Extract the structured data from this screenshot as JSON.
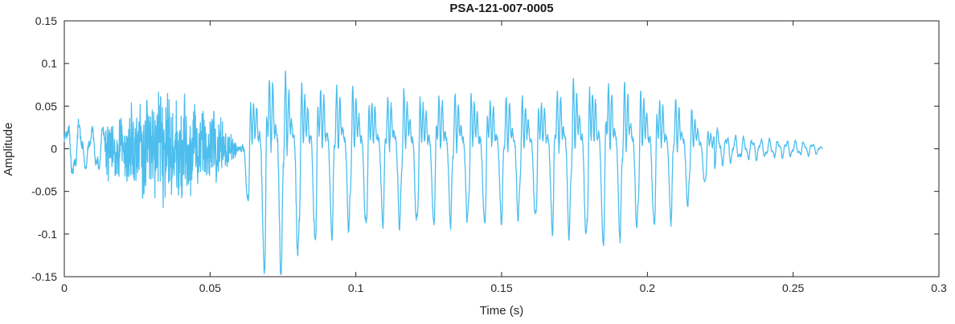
{
  "chart_data": {
    "type": "line",
    "title": "PSA-121-007-0005",
    "xlabel": "Time (s)",
    "ylabel": "Amplitude",
    "xlim": [
      0,
      0.3
    ],
    "ylim": [
      -0.15,
      0.15
    ],
    "xticks": [
      0,
      0.05,
      0.1,
      0.15,
      0.2,
      0.25,
      0.3
    ],
    "xtick_labels": [
      "0",
      "0.05",
      "0.1",
      "0.15",
      "0.2",
      "0.25",
      "0.3"
    ],
    "yticks": [
      -0.15,
      -0.1,
      -0.05,
      0,
      0.05,
      0.1,
      0.15
    ],
    "ytick_labels": [
      "-0.15",
      "-0.1",
      "-0.05",
      "0",
      "0.05",
      "0.1",
      "0.15"
    ],
    "grid": false,
    "legend_position": "none",
    "line_color": "#4DBEEE",
    "axis_color": "#262626",
    "background_color": "#ffffff",
    "waveform": {
      "description": "speech-like audio waveform: low-amplitude noisy onset 0-0.06 s, strong voiced oscillation 0.062-0.22 s peaking at +0.118 / -0.145, decaying ripple tail ending near 0.26 s",
      "signal_start_s": 0,
      "signal_end_s": 0.26,
      "peak_positive": 0.118,
      "peak_negative": -0.145,
      "sample_rate": 12000,
      "envelope": [
        [
          0,
          0.028
        ],
        [
          0.004,
          0.032
        ],
        [
          0.008,
          0.02
        ],
        [
          0.012,
          0.026
        ],
        [
          0.016,
          0.034
        ],
        [
          0.02,
          0.038
        ],
        [
          0.025,
          0.046
        ],
        [
          0.03,
          0.052
        ],
        [
          0.034,
          0.068
        ],
        [
          0.038,
          0.056
        ],
        [
          0.042,
          0.05
        ],
        [
          0.046,
          0.046
        ],
        [
          0.05,
          0.04
        ],
        [
          0.054,
          0.03
        ],
        [
          0.058,
          0.014
        ],
        [
          0.06,
          0.005
        ],
        [
          0.0615,
          0.018
        ],
        [
          0.064,
          0.09
        ],
        [
          0.068,
          0.12
        ],
        [
          0.072,
          0.135
        ],
        [
          0.076,
          0.124
        ],
        [
          0.08,
          0.11
        ],
        [
          0.085,
          0.117
        ],
        [
          0.09,
          0.113
        ],
        [
          0.095,
          0.1
        ],
        [
          0.1,
          0.105
        ],
        [
          0.105,
          0.095
        ],
        [
          0.11,
          0.09
        ],
        [
          0.115,
          0.097
        ],
        [
          0.12,
          0.1
        ],
        [
          0.125,
          0.092
        ],
        [
          0.13,
          0.095
        ],
        [
          0.135,
          0.09
        ],
        [
          0.14,
          0.097
        ],
        [
          0.145,
          0.092
        ],
        [
          0.15,
          0.088
        ],
        [
          0.155,
          0.09
        ],
        [
          0.16,
          0.086
        ],
        [
          0.165,
          0.094
        ],
        [
          0.17,
          0.104
        ],
        [
          0.175,
          0.112
        ],
        [
          0.18,
          0.115
        ],
        [
          0.185,
          0.118
        ],
        [
          0.19,
          0.11
        ],
        [
          0.195,
          0.105
        ],
        [
          0.2,
          0.1
        ],
        [
          0.205,
          0.092
        ],
        [
          0.21,
          0.084
        ],
        [
          0.214,
          0.074
        ],
        [
          0.218,
          0.054
        ],
        [
          0.222,
          0.03
        ],
        [
          0.225,
          0.016
        ],
        [
          0.23,
          0.013
        ],
        [
          0.235,
          0.011
        ],
        [
          0.24,
          0.01
        ],
        [
          0.245,
          0.009
        ],
        [
          0.25,
          0.008
        ],
        [
          0.255,
          0.007
        ],
        [
          0.259,
          0.005
        ],
        [
          0.26,
          0
        ]
      ],
      "segments": [
        {
          "type": "tone",
          "t0": 0,
          "t1": 0.014,
          "freq": 240,
          "noise": 0.2
        },
        {
          "type": "noise",
          "t0": 0.014,
          "t1": 0.059,
          "freq": 1700
        },
        {
          "type": "silence",
          "t0": 0.059,
          "t1": 0.0615
        },
        {
          "type": "voiced",
          "t0": 0.0615,
          "t1": 0.223,
          "f0": 172
        },
        {
          "type": "tail",
          "t0": 0.223,
          "t1": 0.26,
          "freq": 340
        }
      ]
    }
  }
}
